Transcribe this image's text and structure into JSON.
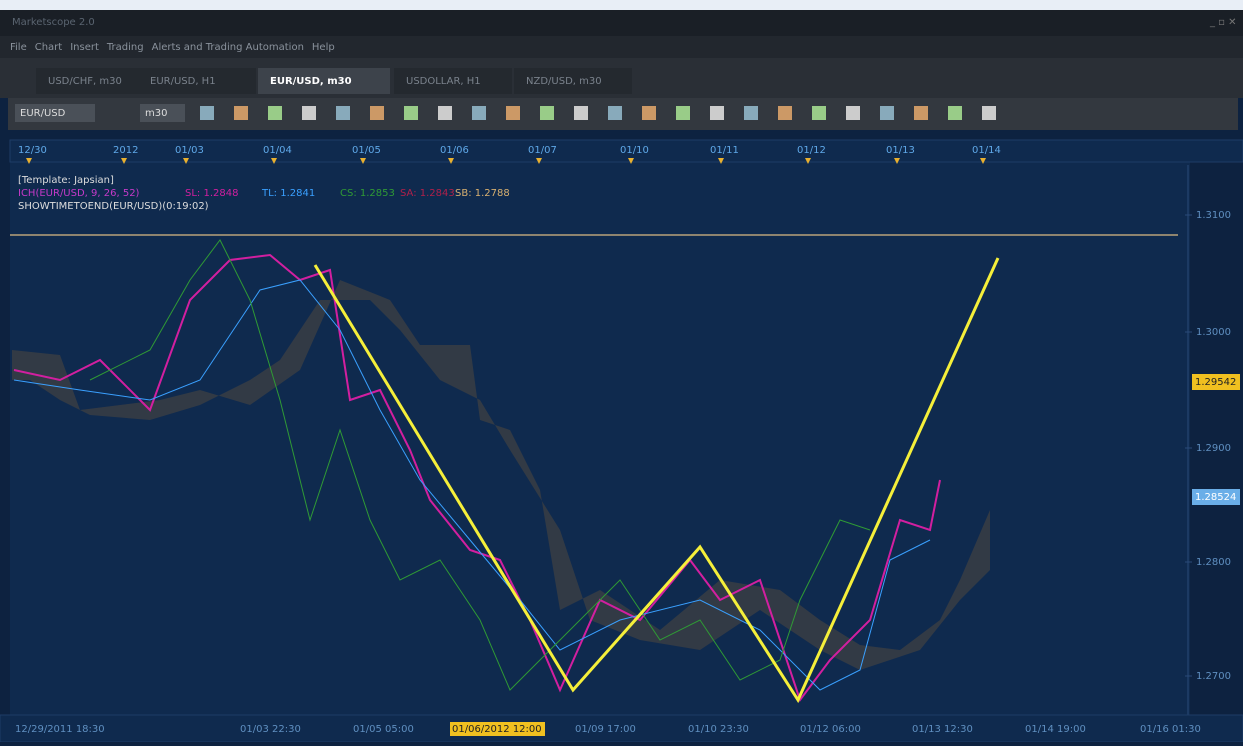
{
  "window": {
    "title": "Marketscope 2.0"
  },
  "menu": [
    "File",
    "Chart",
    "Insert",
    "Trading",
    "Alerts and Trading Automation",
    "Help"
  ],
  "tabs": [
    "USD/CHF, m30",
    "EUR/USD, H1",
    "EUR/USD, m30",
    "USDOLLAR, H1",
    "NZD/USD, m30"
  ],
  "toolbar": {
    "symbol": "EUR/USD",
    "timeframe": "m30"
  },
  "top_dates": [
    "12/30",
    "2012",
    "01/03",
    "01/04",
    "01/05",
    "01/06",
    "01/07",
    "01/10",
    "01/11",
    "01/12",
    "01/13",
    "01/14"
  ],
  "legend": {
    "template": "[Template: Japsian]",
    "indicator": "ICH(EUR/USD, 9, 26, 52)",
    "sl": "SL: 1.2848",
    "tl": "TL: 1.2841",
    "cs": "CS: 1.2853",
    "sa": "SA: 1.2843",
    "sb": "SB: 1.2788",
    "timer": "SHOWTIMETOEND(EUR/USD)(0:19:02)"
  },
  "price_axis": [
    "1.3100",
    "1.3000",
    "1.2900",
    "1.2800",
    "1.2700"
  ],
  "price_markers": {
    "bid": "1.29542",
    "last": "1.28524"
  },
  "bottom_dates": [
    "12/29/2011 18:30",
    "01/03 22:30",
    "01/05 05:00",
    "01/06/2012 12:00",
    "01/09 17:00",
    "01/10 23:30",
    "01/12 06:00",
    "01/13 12:30",
    "01/14 19:00",
    "01/16 01:30"
  ]
}
